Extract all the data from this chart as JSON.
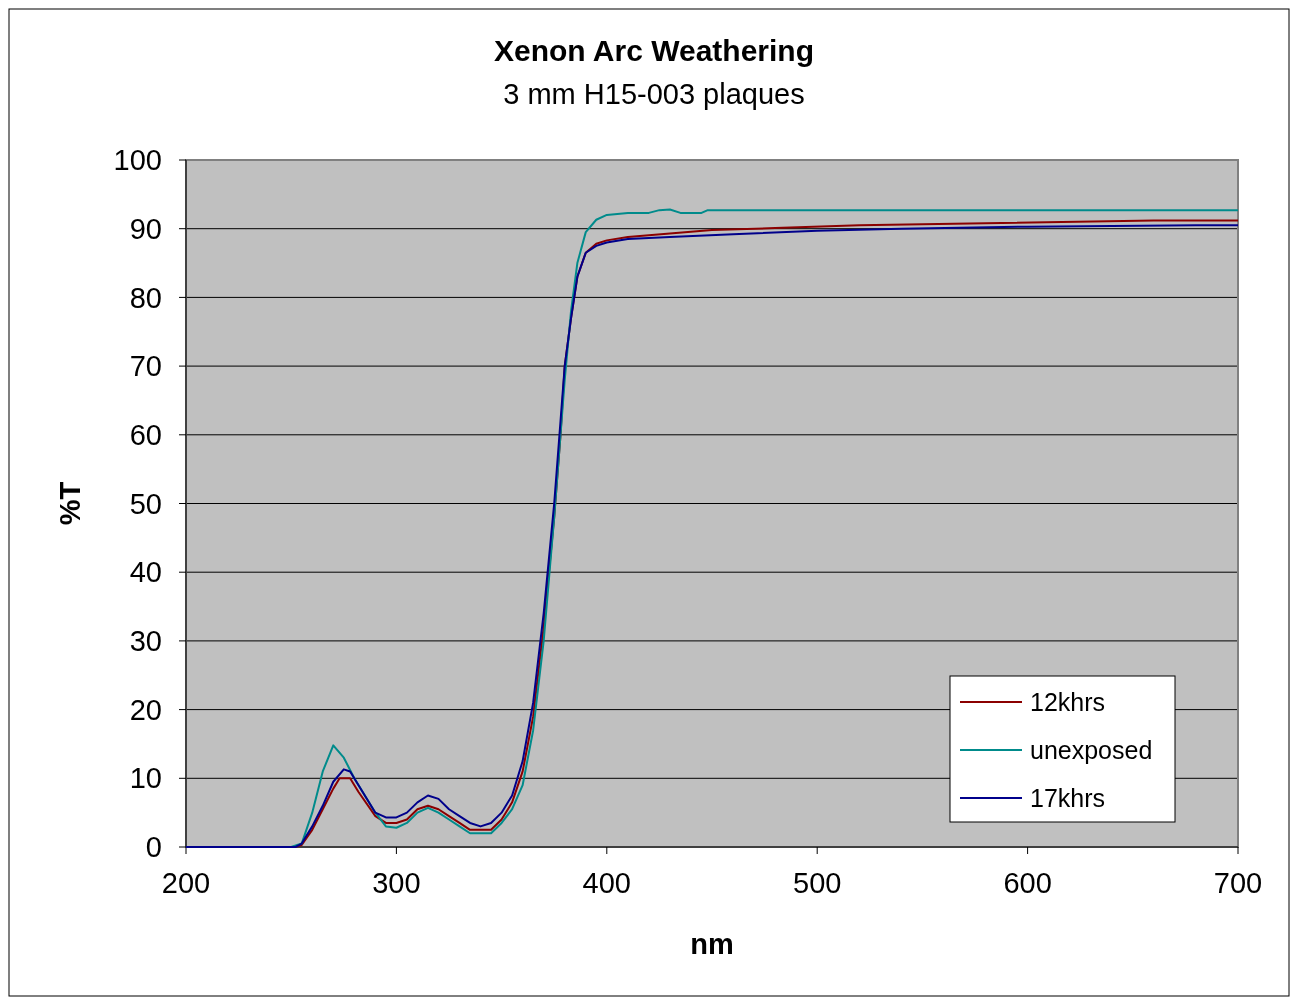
{
  "chart_data": {
    "type": "line",
    "title": "Xenon Arc Weathering",
    "subtitle": "3 mm H15-003 plaques",
    "xlabel": "nm",
    "ylabel": "%T",
    "xlim": [
      200,
      700
    ],
    "xticks": [
      200,
      300,
      400,
      500,
      600,
      700
    ],
    "ylim": [
      0,
      100
    ],
    "yticks": [
      0,
      10,
      20,
      30,
      40,
      50,
      60,
      70,
      80,
      90,
      100
    ],
    "grid": "y",
    "legend": "bottom right",
    "marker": "none",
    "line_style": "solid",
    "series": [
      {
        "name": "12khrs",
        "color": "#8b0000",
        "x": [
          200,
          252,
          255,
          260,
          265,
          270,
          273,
          278,
          282,
          290,
          295,
          300,
          305,
          310,
          315,
          320,
          325,
          330,
          335,
          340,
          345,
          350,
          355,
          360,
          365,
          370,
          375,
          378,
          380,
          383,
          386,
          390,
          395,
          400,
          410,
          430,
          450,
          480,
          520,
          580,
          660,
          700
        ],
        "values": [
          0,
          0,
          0.3,
          2.5,
          5.5,
          8.5,
          10,
          10,
          8,
          4.5,
          3.5,
          3.5,
          4,
          5.5,
          6,
          5.5,
          4.5,
          3.5,
          2.5,
          2.5,
          2.5,
          4,
          6.5,
          11,
          19,
          32,
          48,
          60,
          70,
          77,
          83,
          86.5,
          87.8,
          88.3,
          88.8,
          89.3,
          89.8,
          90.1,
          90.5,
          90.8,
          91.2,
          91.2
        ]
      },
      {
        "name": "unexposed",
        "color": "#008b8b",
        "x": [
          200,
          250,
          255,
          260,
          265,
          270,
          275,
          280,
          290,
          295,
          300,
          305,
          310,
          315,
          320,
          325,
          330,
          335,
          340,
          345,
          350,
          355,
          360,
          365,
          370,
          375,
          378,
          380,
          383,
          386,
          390,
          395,
          400,
          410,
          420,
          425,
          430,
          435,
          445,
          448,
          700
        ],
        "values": [
          0,
          0,
          0.5,
          5,
          11,
          14.8,
          13,
          10,
          5,
          3,
          2.8,
          3.5,
          5,
          5.7,
          5,
          4,
          3,
          2,
          2,
          2,
          3.5,
          5.5,
          9,
          17,
          30,
          48,
          60,
          68,
          78,
          85,
          89.5,
          91.3,
          92,
          92.3,
          92.3,
          92.7,
          92.8,
          92.3,
          92.3,
          92.7,
          92.7
        ]
      },
      {
        "name": "17khrs",
        "color": "#00008b",
        "x": [
          200,
          252,
          255,
          260,
          265,
          270,
          275,
          278,
          282,
          290,
          295,
          300,
          305,
          310,
          315,
          320,
          325,
          330,
          335,
          340,
          345,
          350,
          355,
          360,
          365,
          370,
          375,
          378,
          380,
          383,
          386,
          390,
          395,
          400,
          410,
          430,
          460,
          500,
          540,
          600,
          680,
          700
        ],
        "values": [
          0,
          0,
          0.5,
          3,
          6,
          9.5,
          11.3,
          11,
          9,
          5,
          4.3,
          4.3,
          5,
          6.5,
          7.5,
          7,
          5.5,
          4.5,
          3.5,
          3,
          3.5,
          5,
          7.5,
          12.5,
          21,
          34,
          50,
          62,
          70,
          77,
          83,
          86.5,
          87.5,
          88,
          88.5,
          88.8,
          89.2,
          89.7,
          90,
          90.3,
          90.5,
          90.5
        ]
      }
    ]
  }
}
